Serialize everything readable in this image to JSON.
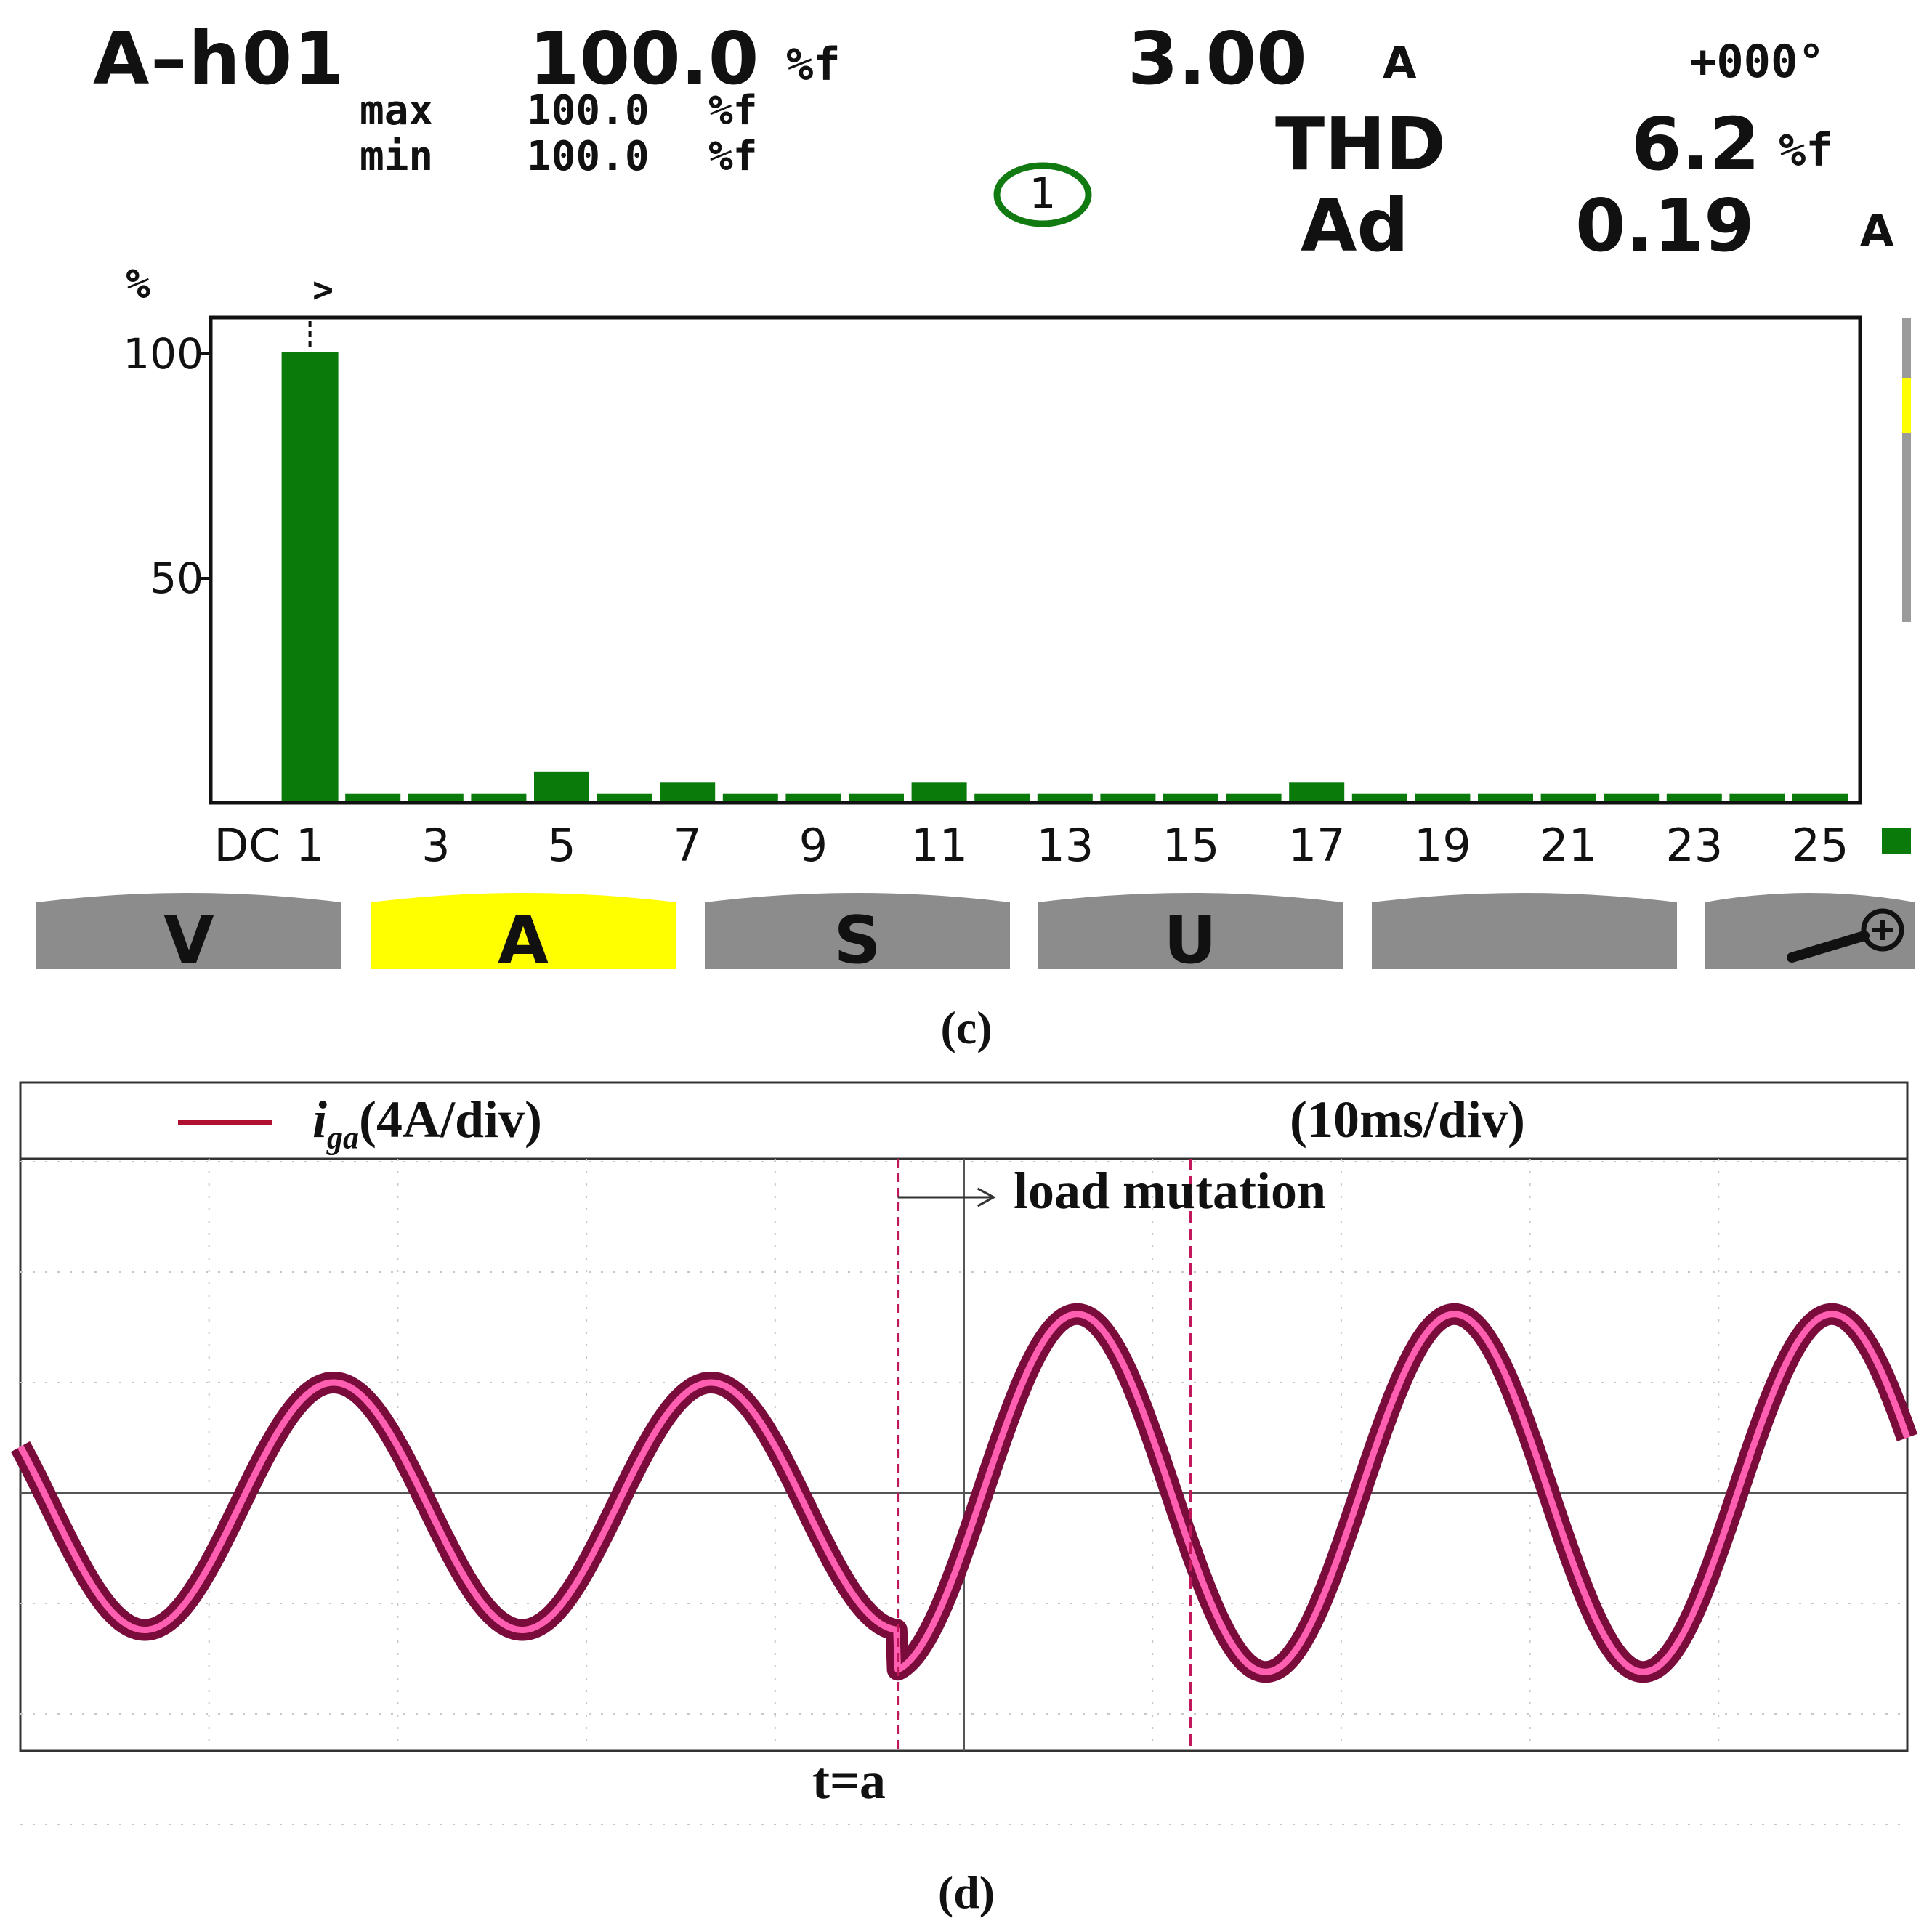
{
  "panel_c": {
    "caption": "(c)",
    "readout": {
      "harmonic_id": "A–h01",
      "percent_value": "100.0",
      "percent_unit": "%f",
      "rms_value": "3.00",
      "rms_unit": "A",
      "phase": "+000°",
      "max_label": "max",
      "max_value": "100.0",
      "max_unit": "%f",
      "min_label": "min",
      "min_value": "100.0",
      "min_unit": "%f",
      "channel_badge": "1",
      "thd_label": "THD",
      "thd_value": "6.2",
      "thd_unit": "%f",
      "ad_label": "Ad",
      "ad_value": "0.19",
      "ad_unit": "A"
    },
    "softkeys": [
      {
        "label": "V",
        "active": false
      },
      {
        "label": "A",
        "active": true
      },
      {
        "label": "S",
        "active": false
      },
      {
        "label": "U",
        "active": false
      },
      {
        "label": "",
        "active": false
      },
      {
        "label": "",
        "active": false,
        "icon": "zoom-in-icon"
      }
    ],
    "colors": {
      "bar": "#0a7a0a",
      "active_key": "#ffff00",
      "key": "#8c8c8c",
      "badge": "#117a11"
    }
  },
  "panel_d": {
    "caption": "(d)",
    "legend_symbol": "i",
    "legend_subscript": "ga",
    "legend_scale": "(4A/div)",
    "time_scale": "(10ms/div)",
    "annotation": "load mutation",
    "marker_label": "t=a",
    "colors": {
      "trace_outer": "#7a0c3c",
      "trace_inner": "#ff5fb0",
      "marker": "#c0185a",
      "legend_line": "#b01030"
    }
  },
  "chart_data": [
    {
      "type": "bar",
      "title": "",
      "ylabel": "%",
      "ylim": [
        0,
        100
      ],
      "yticks": [
        50,
        100
      ],
      "categories": [
        "DC",
        "1",
        "2",
        "3",
        "4",
        "5",
        "6",
        "7",
        "8",
        "9",
        "10",
        "11",
        "12",
        "13",
        "14",
        "15",
        "16",
        "17",
        "18",
        "19",
        "20",
        "21",
        "22",
        "23",
        "24",
        "25"
      ],
      "xtick_labels": [
        "DC",
        "1",
        "3",
        "5",
        "7",
        "9",
        "11",
        "13",
        "15",
        "17",
        "19",
        "21",
        "23",
        "25"
      ],
      "values": [
        0,
        100,
        1.5,
        1.5,
        1.5,
        6.5,
        1.5,
        4,
        1.5,
        1.5,
        1.5,
        4,
        1.5,
        1.5,
        1.5,
        1.5,
        1.5,
        4,
        1.5,
        1.5,
        1.5,
        1.5,
        1.5,
        1.5,
        1.5,
        1.5
      ],
      "cursor_marker": ">",
      "cursor_category": "1"
    },
    {
      "type": "line",
      "title": "",
      "xlabel": "(10ms/div)",
      "ylabel": "(4A/div)",
      "series": [
        {
          "name": "iga",
          "x_divisions_per_cycle": 2,
          "segments": [
            {
              "from_div": 0,
              "to_div": 4.65,
              "amplitude_div": 1.12,
              "offset_div": -0.12,
              "phase_div_at_zero": -0.34
            },
            {
              "from_div": 4.65,
              "to_div": 10,
              "amplitude_div": 1.62,
              "offset_div": 0.0,
              "phase_div_at_zero": -0.4
            }
          ]
        }
      ],
      "x_divisions": 10,
      "y_divisions": 8,
      "event_marker_div": 4.65,
      "second_marker_div": 6.2
    }
  ]
}
